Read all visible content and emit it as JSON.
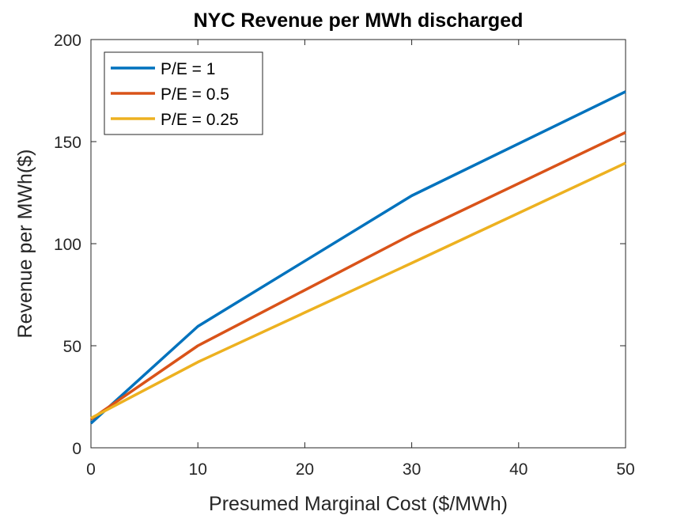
{
  "chart_data": {
    "type": "line",
    "title": "NYC Revenue per MWh discharged",
    "xlabel": "Presumed Marginal Cost ($/MWh)",
    "ylabel": "Revenue per MWh($)",
    "xlim": [
      0,
      50
    ],
    "ylim": [
      0,
      200
    ],
    "xticks": [
      0,
      10,
      20,
      30,
      40,
      50
    ],
    "yticks": [
      0,
      50,
      100,
      150,
      200
    ],
    "grid": false,
    "legend_position": "top-left",
    "x": [
      0,
      10,
      30,
      50
    ],
    "series": [
      {
        "name": "P/E = 1",
        "color": "#0072BD",
        "values": [
          12,
          59.5,
          123.5,
          174.5
        ]
      },
      {
        "name": "P/E = 0.5",
        "color": "#D95319",
        "values": [
          14,
          50,
          104.5,
          154.5
        ]
      },
      {
        "name": "P/E = 0.25",
        "color": "#EDB120",
        "values": [
          14.5,
          42,
          90.5,
          139.5
        ]
      }
    ]
  }
}
